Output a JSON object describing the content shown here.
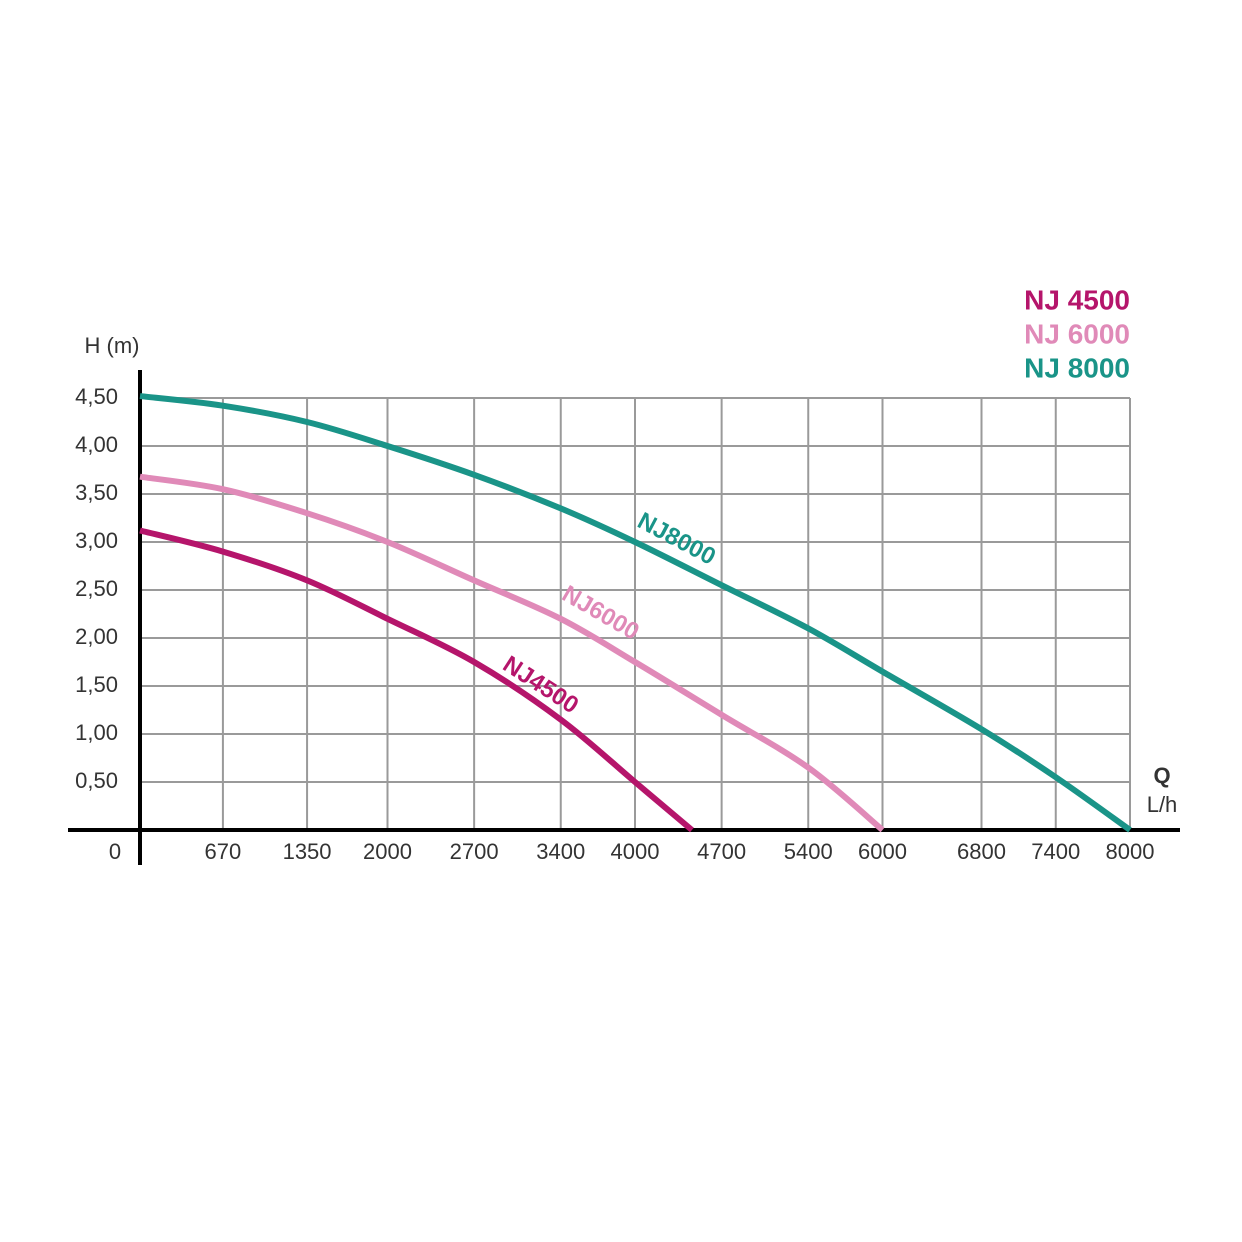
{
  "chart_data": {
    "type": "line",
    "ylabel": "H (m)",
    "xlabel": "Q",
    "xunit": "L/h",
    "xlim": [
      0,
      8000
    ],
    "ylim": [
      0,
      4.5
    ],
    "xticks": [
      0,
      670,
      1350,
      2000,
      2700,
      3400,
      4000,
      4700,
      5400,
      6000,
      6800,
      7400,
      8000
    ],
    "yticks": [
      {
        "value": 0.5,
        "label": "0,50"
      },
      {
        "value": 1,
        "label": "1,00"
      },
      {
        "value": 1.5,
        "label": "1,50"
      },
      {
        "value": 2,
        "label": "2,00"
      },
      {
        "value": 2.5,
        "label": "2,50"
      },
      {
        "value": 3,
        "label": "3,00"
      },
      {
        "value": 3.5,
        "label": "3,50"
      },
      {
        "value": 4,
        "label": "4,00"
      },
      {
        "value": 4.5,
        "label": "4,50"
      }
    ],
    "grid": true,
    "legend": "top-right",
    "series": [
      {
        "name": "NJ 4500",
        "color": "#b5156b",
        "x": [
          0,
          670,
          1350,
          2000,
          2700,
          3400,
          4000,
          4460
        ],
        "values": [
          3.12,
          2.9,
          2.6,
          2.2,
          1.75,
          1.15,
          0.5,
          0
        ]
      },
      {
        "name": "NJ 6000",
        "color": "#e08ab8",
        "x": [
          0,
          670,
          1350,
          2000,
          2700,
          3400,
          4000,
          4700,
          5400,
          6000
        ],
        "values": [
          3.68,
          3.55,
          3.3,
          3.0,
          2.6,
          2.2,
          1.75,
          1.2,
          0.65,
          0
        ]
      },
      {
        "name": "NJ 8000",
        "color": "#1a9488",
        "x": [
          0,
          670,
          1350,
          2000,
          2700,
          3400,
          4000,
          4700,
          5400,
          6000,
          6800,
          7400,
          8000
        ],
        "values": [
          4.52,
          4.42,
          4.25,
          4.0,
          3.7,
          3.35,
          3.0,
          2.55,
          2.1,
          1.65,
          1.05,
          0.55,
          0
        ]
      }
    ],
    "annotations": [
      {
        "text": "NJ4500"
      },
      {
        "text": "NJ6000"
      },
      {
        "text": "NJ8000"
      }
    ]
  }
}
